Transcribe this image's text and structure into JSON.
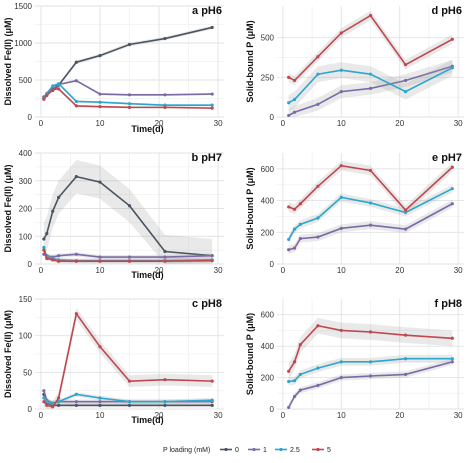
{
  "legend": {
    "title": "P loading (mM)",
    "colors": [
      "#4a5560",
      "#7b6aa6",
      "#2ba7cf",
      "#c0474f"
    ]
  },
  "chart_data": [
    {
      "type": "line",
      "panel": "a",
      "title": "a pH6",
      "xlabel": "Time(d)",
      "ylabel": "Dissolved Fe(II) (μM)",
      "xlim": [
        -1,
        31
      ],
      "ylim": [
        0,
        1500
      ],
      "xticks": [
        0,
        10,
        20,
        30
      ],
      "yticks": [
        0,
        500,
        1000,
        1500
      ],
      "series": [
        {
          "name": "0",
          "x": [
            0.5,
            1,
            2,
            3,
            6,
            10,
            15,
            21,
            29
          ],
          "y": [
            270,
            310,
            360,
            430,
            740,
            830,
            980,
            1060,
            1210
          ],
          "band": 25
        },
        {
          "name": "1",
          "x": [
            0.5,
            1,
            2,
            3,
            6,
            10,
            15,
            21,
            29
          ],
          "y": [
            260,
            300,
            380,
            440,
            490,
            310,
            300,
            300,
            310
          ],
          "band": 15
        },
        {
          "name": "2.5",
          "x": [
            0.5,
            1,
            2,
            3,
            6,
            10,
            15,
            21,
            29
          ],
          "y": [
            250,
            320,
            420,
            450,
            210,
            200,
            180,
            160,
            160
          ],
          "band": 15
        },
        {
          "name": "5",
          "x": [
            0.5,
            1,
            2,
            3,
            6,
            10,
            15,
            21,
            29
          ],
          "y": [
            240,
            290,
            370,
            380,
            150,
            140,
            130,
            130,
            120
          ],
          "band": 15
        }
      ]
    },
    {
      "type": "line",
      "panel": "d",
      "title": "d pH6",
      "xlabel": "",
      "ylabel": "Solid-bound P (μM)",
      "xlim": [
        -1,
        31
      ],
      "ylim": [
        0,
        700
      ],
      "xticks": [
        0,
        10,
        20,
        30
      ],
      "yticks": [
        0,
        250,
        500
      ],
      "series": [
        {
          "name": "1",
          "x": [
            1,
            2,
            6,
            10,
            15,
            21,
            29
          ],
          "y": [
            10,
            30,
            80,
            160,
            180,
            230,
            320
          ],
          "band": 40
        },
        {
          "name": "2.5",
          "x": [
            1,
            2,
            6,
            10,
            15,
            21,
            29
          ],
          "y": [
            90,
            110,
            270,
            295,
            270,
            160,
            310
          ],
          "band": 50
        },
        {
          "name": "5",
          "x": [
            1,
            2,
            6,
            10,
            15,
            21,
            29
          ],
          "y": [
            250,
            230,
            380,
            530,
            640,
            330,
            490
          ],
          "band": 30
        }
      ]
    },
    {
      "type": "line",
      "panel": "b",
      "title": "b pH7",
      "xlabel": "Time(d)",
      "ylabel": "Dissolved Fe(II) (μM)",
      "xlim": [
        -1,
        31
      ],
      "ylim": [
        0,
        400
      ],
      "xticks": [
        0,
        10,
        20,
        30
      ],
      "yticks": [
        0,
        100,
        200,
        300,
        400
      ],
      "series": [
        {
          "name": "0",
          "x": [
            0.5,
            1,
            2,
            3,
            6,
            10,
            15,
            21,
            29
          ],
          "y": [
            90,
            110,
            190,
            240,
            315,
            295,
            210,
            45,
            30
          ],
          "band": 60
        },
        {
          "name": "1",
          "x": [
            0.5,
            1,
            2,
            3,
            6,
            10,
            15,
            21,
            29
          ],
          "y": [
            35,
            30,
            25,
            30,
            35,
            25,
            25,
            25,
            30
          ],
          "band": 8
        },
        {
          "name": "2.5",
          "x": [
            0.5,
            1,
            2,
            3,
            6,
            10,
            15,
            21,
            29
          ],
          "y": [
            60,
            25,
            20,
            15,
            12,
            12,
            12,
            12,
            15
          ],
          "band": 8
        },
        {
          "name": "5",
          "x": [
            0.5,
            1,
            2,
            3,
            6,
            10,
            15,
            21,
            29
          ],
          "y": [
            50,
            20,
            15,
            10,
            10,
            10,
            10,
            10,
            12
          ],
          "band": 8
        }
      ]
    },
    {
      "type": "line",
      "panel": "e",
      "title": "e pH7",
      "xlabel": "",
      "ylabel": "Solid-bound P (μM)",
      "xlim": [
        -1,
        31
      ],
      "ylim": [
        0,
        700
      ],
      "xticks": [
        0,
        10,
        20,
        30
      ],
      "yticks": [
        0,
        200,
        400,
        600
      ],
      "series": [
        {
          "name": "1",
          "x": [
            1,
            2,
            3,
            6,
            10,
            15,
            21,
            29
          ],
          "y": [
            90,
            100,
            160,
            170,
            225,
            245,
            220,
            380
          ],
          "band": 25
        },
        {
          "name": "2.5",
          "x": [
            1,
            2,
            3,
            6,
            10,
            15,
            21,
            29
          ],
          "y": [
            155,
            220,
            250,
            290,
            420,
            385,
            325,
            475
          ],
          "band": 25
        },
        {
          "name": "5",
          "x": [
            1,
            2,
            3,
            6,
            10,
            15,
            21,
            29
          ],
          "y": [
            360,
            345,
            380,
            490,
            620,
            590,
            340,
            610
          ],
          "band": 30
        }
      ]
    },
    {
      "type": "line",
      "panel": "c",
      "title": "c pH8",
      "xlabel": "Time(d)",
      "ylabel": "Dissolved Fe(II) (μM)",
      "xlim": [
        -1,
        31
      ],
      "ylim": [
        0,
        150
      ],
      "xticks": [
        0,
        10,
        20,
        30
      ],
      "yticks": [
        0,
        50,
        100,
        150
      ],
      "series": [
        {
          "name": "0",
          "x": [
            0.5,
            1,
            2,
            3,
            6,
            10,
            15,
            21,
            29
          ],
          "y": [
            20,
            8,
            5,
            5,
            5,
            5,
            5,
            5,
            5
          ],
          "band": 3
        },
        {
          "name": "1",
          "x": [
            0.5,
            1,
            2,
            3,
            6,
            10,
            15,
            21,
            29
          ],
          "y": [
            25,
            12,
            8,
            10,
            10,
            10,
            10,
            10,
            10
          ],
          "band": 3
        },
        {
          "name": "2.5",
          "x": [
            0.5,
            1,
            2,
            3,
            6,
            10,
            15,
            21,
            29
          ],
          "y": [
            15,
            10,
            8,
            10,
            20,
            15,
            10,
            10,
            12
          ],
          "band": 3
        },
        {
          "name": "5",
          "x": [
            0.5,
            1,
            2,
            3,
            6,
            10,
            15,
            21,
            29
          ],
          "y": [
            10,
            5,
            3,
            15,
            130,
            85,
            38,
            40,
            38
          ],
          "band": 8
        }
      ]
    },
    {
      "type": "line",
      "panel": "f",
      "title": "f pH8",
      "xlabel": "",
      "ylabel": "Solid-bound P (μM)",
      "xlim": [
        -1,
        31
      ],
      "ylim": [
        0,
        700
      ],
      "xticks": [
        0,
        10,
        20,
        30
      ],
      "yticks": [
        0,
        200,
        400,
        600
      ],
      "series": [
        {
          "name": "1",
          "x": [
            1,
            2,
            3,
            6,
            10,
            15,
            21,
            29
          ],
          "y": [
            10,
            80,
            120,
            150,
            200,
            210,
            220,
            300
          ],
          "band": 20
        },
        {
          "name": "2.5",
          "x": [
            1,
            2,
            3,
            6,
            10,
            15,
            21,
            29
          ],
          "y": [
            175,
            180,
            220,
            260,
            300,
            300,
            320,
            320
          ],
          "band": 25
        },
        {
          "name": "5",
          "x": [
            1,
            2,
            3,
            6,
            10,
            15,
            21,
            29
          ],
          "y": [
            240,
            300,
            410,
            530,
            500,
            490,
            470,
            450
          ],
          "band": 50
        }
      ]
    }
  ]
}
